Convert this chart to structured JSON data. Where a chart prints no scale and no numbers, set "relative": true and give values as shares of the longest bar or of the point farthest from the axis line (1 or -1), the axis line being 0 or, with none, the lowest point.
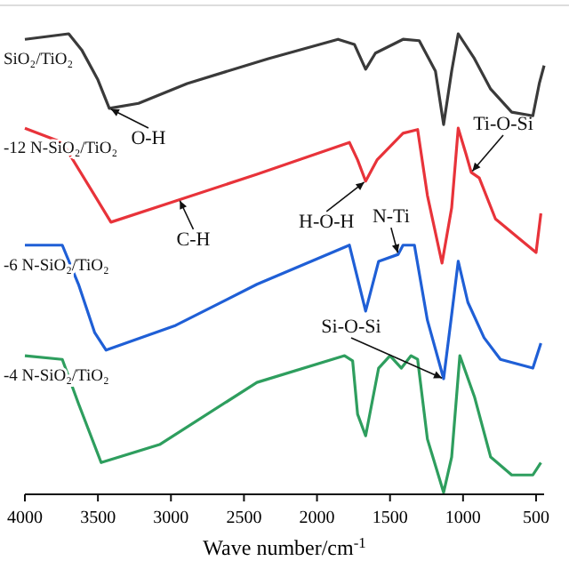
{
  "chart_data": {
    "type": "line",
    "relative": true,
    "xlabel": "Wave number/cm$^{-1}$",
    "xlim": [
      4000,
      445
    ],
    "xticks": [
      4000,
      3500,
      3000,
      2500,
      2000,
      1500,
      1000,
      500
    ],
    "legend": false,
    "series": [
      {
        "name": "SiO₂/TiO₂",
        "color": "#3a3a3a",
        "x": [
          4000,
          3700,
          3611,
          3500,
          3422,
          3222,
          2889,
          2333,
          1856,
          1744,
          1667,
          1600,
          1411,
          1300,
          1189,
          1133,
          1078,
          1033,
          922,
          811,
          667,
          522,
          478,
          445
        ],
        "values": [
          0.988,
          1,
          0.965,
          0.9,
          0.838,
          0.849,
          0.892,
          0.946,
          0.988,
          0.977,
          0.923,
          0.958,
          0.988,
          0.985,
          0.919,
          0.803,
          0.919,
          1,
          0.946,
          0.88,
          0.83,
          0.822,
          0.892,
          0.931
        ]
      },
      {
        "name": "-12 N-SiO₂/TiO₂",
        "color": "#e8333a",
        "x": [
          4000,
          3744,
          3522,
          3411,
          2967,
          2411,
          1778,
          1722,
          1667,
          1589,
          1411,
          1311,
          1244,
          1144,
          1078,
          1033,
          978,
          944,
          889,
          778,
          633,
          500,
          467
        ],
        "values": [
          0.795,
          0.764,
          0.649,
          0.591,
          0.637,
          0.695,
          0.764,
          0.726,
          0.68,
          0.726,
          0.784,
          0.792,
          0.649,
          0.502,
          0.622,
          0.795,
          0.737,
          0.699,
          0.687,
          0.598,
          0.56,
          0.525,
          0.61
        ]
      },
      {
        "name": "-6 N-SiO₂/TiO₂",
        "color": "#1f5fd6",
        "x": [
          4000,
          3744,
          3633,
          3522,
          3444,
          2967,
          2411,
          1778,
          1667,
          1578,
          1444,
          1411,
          1333,
          1244,
          1133,
          1078,
          1033,
          967,
          856,
          744,
          522,
          467
        ],
        "values": [
          0.541,
          0.541,
          0.456,
          0.351,
          0.313,
          0.367,
          0.456,
          0.541,
          0.398,
          0.506,
          0.521,
          0.541,
          0.541,
          0.378,
          0.251,
          0.39,
          0.506,
          0.417,
          0.34,
          0.293,
          0.274,
          0.328
        ]
      },
      {
        "name": "-4 N-SiO₂/TiO₂",
        "color": "#2e9e5e",
        "x": [
          4000,
          3744,
          3633,
          3478,
          3078,
          2411,
          1811,
          1756,
          1722,
          1667,
          1578,
          1500,
          1422,
          1356,
          1311,
          1244,
          1133,
          1078,
          1022,
          922,
          811,
          667,
          522,
          467
        ],
        "values": [
          0.301,
          0.293,
          0.197,
          0.069,
          0.108,
          0.243,
          0.301,
          0.29,
          0.174,
          0.127,
          0.274,
          0.301,
          0.274,
          0.301,
          0.293,
          0.12,
          0.004,
          0.081,
          0.301,
          0.212,
          0.081,
          0.042,
          0.042,
          0.069
        ]
      }
    ],
    "annotations": [
      {
        "text": "O-H",
        "x": 3422,
        "y": 0.838
      },
      {
        "text": "C-H",
        "x": 2944,
        "y": 0.641
      },
      {
        "text": "H-O-H",
        "x": 1667,
        "y": 0.68
      },
      {
        "text": "N-Ti",
        "x": 1444,
        "y": 0.521
      },
      {
        "text": "Ti-O-Si",
        "x": 944,
        "y": 0.699
      },
      {
        "text": "Si-O-Si",
        "x": 1133,
        "y": 0.251
      }
    ]
  }
}
